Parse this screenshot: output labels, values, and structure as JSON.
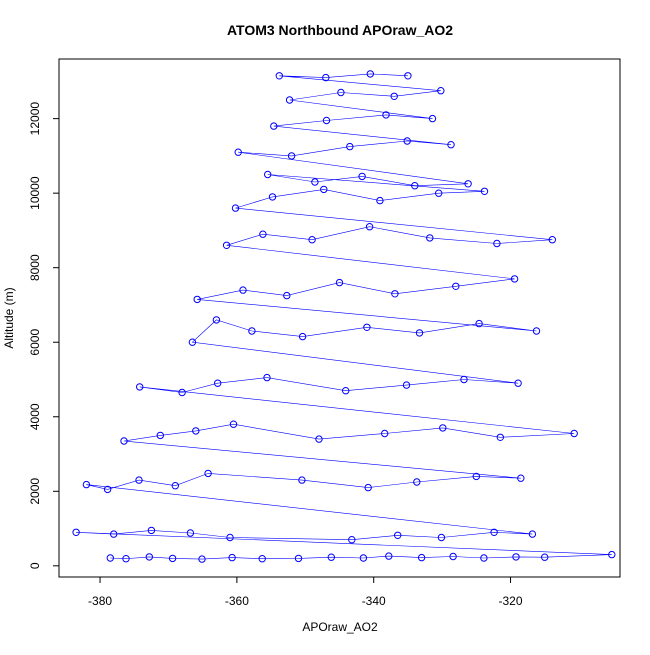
{
  "chart_data": {
    "type": "scatter",
    "title": "ATOM3 Northbound APOraw_AO2",
    "xlabel": "APOraw_AO2",
    "ylabel": "Altitude (m)",
    "xlim": [
      -386,
      -304
    ],
    "ylim": [
      -300,
      13600
    ],
    "xticks": [
      -380,
      -360,
      -340,
      -320
    ],
    "yticks": [
      0,
      2000,
      4000,
      6000,
      8000,
      10000,
      12000
    ],
    "grid": false,
    "legend": "none",
    "marker": "open-circle",
    "connect_points": true,
    "series": [
      {
        "color": "#0000ff",
        "points": [
          [
            -378.5,
            210
          ],
          [
            -376.2,
            190
          ],
          [
            -372.8,
            240
          ],
          [
            -369.4,
            200
          ],
          [
            -365.1,
            180
          ],
          [
            -360.7,
            220
          ],
          [
            -356.3,
            190
          ],
          [
            -351.0,
            200
          ],
          [
            -346.2,
            230
          ],
          [
            -341.5,
            210
          ],
          [
            -337.8,
            260
          ],
          [
            -333.0,
            220
          ],
          [
            -328.4,
            250
          ],
          [
            -323.9,
            210
          ],
          [
            -319.2,
            240
          ],
          [
            -315.0,
            230
          ],
          [
            -305.2,
            300
          ],
          [
            -383.5,
            900
          ],
          [
            -378.0,
            850
          ],
          [
            -372.5,
            950
          ],
          [
            -366.8,
            880
          ],
          [
            -361.0,
            760
          ],
          [
            -343.2,
            700
          ],
          [
            -336.5,
            820
          ],
          [
            -330.1,
            760
          ],
          [
            -322.4,
            900
          ],
          [
            -316.8,
            850
          ],
          [
            -382.0,
            2180
          ],
          [
            -378.9,
            2050
          ],
          [
            -374.3,
            2300
          ],
          [
            -369.0,
            2150
          ],
          [
            -364.2,
            2480
          ],
          [
            -350.5,
            2300
          ],
          [
            -340.8,
            2100
          ],
          [
            -333.7,
            2250
          ],
          [
            -325.0,
            2400
          ],
          [
            -318.5,
            2350
          ],
          [
            -376.5,
            3350
          ],
          [
            -371.2,
            3500
          ],
          [
            -366.0,
            3620
          ],
          [
            -360.5,
            3800
          ],
          [
            -348.0,
            3400
          ],
          [
            -338.4,
            3550
          ],
          [
            -329.9,
            3700
          ],
          [
            -321.5,
            3450
          ],
          [
            -310.7,
            3550
          ],
          [
            -374.2,
            4800
          ],
          [
            -368.0,
            4650
          ],
          [
            -362.8,
            4900
          ],
          [
            -355.6,
            5050
          ],
          [
            -344.1,
            4700
          ],
          [
            -335.2,
            4850
          ],
          [
            -326.8,
            5000
          ],
          [
            -318.9,
            4900
          ],
          [
            -366.5,
            6000
          ],
          [
            -363.0,
            6600
          ],
          [
            -357.8,
            6300
          ],
          [
            -350.4,
            6150
          ],
          [
            -341.0,
            6400
          ],
          [
            -333.3,
            6250
          ],
          [
            -324.6,
            6500
          ],
          [
            -316.2,
            6300
          ],
          [
            -365.8,
            7150
          ],
          [
            -359.1,
            7400
          ],
          [
            -352.7,
            7250
          ],
          [
            -345.0,
            7600
          ],
          [
            -336.9,
            7300
          ],
          [
            -328.0,
            7500
          ],
          [
            -319.4,
            7700
          ],
          [
            -361.5,
            8600
          ],
          [
            -356.2,
            8900
          ],
          [
            -349.0,
            8750
          ],
          [
            -340.6,
            9100
          ],
          [
            -331.8,
            8800
          ],
          [
            -322.0,
            8650
          ],
          [
            -313.9,
            8750
          ],
          [
            -360.2,
            9600
          ],
          [
            -354.8,
            9900
          ],
          [
            -347.3,
            10100
          ],
          [
            -339.1,
            9800
          ],
          [
            -330.5,
            10000
          ],
          [
            -323.8,
            10050
          ],
          [
            -355.5,
            10500
          ],
          [
            -348.6,
            10300
          ],
          [
            -341.7,
            10450
          ],
          [
            -334.0,
            10200
          ],
          [
            -326.2,
            10250
          ],
          [
            -359.8,
            11100
          ],
          [
            -352.0,
            11000
          ],
          [
            -343.5,
            11250
          ],
          [
            -335.1,
            11400
          ],
          [
            -328.7,
            11300
          ],
          [
            -354.6,
            11800
          ],
          [
            -346.9,
            11950
          ],
          [
            -338.2,
            12100
          ],
          [
            -331.4,
            12000
          ],
          [
            -352.3,
            12500
          ],
          [
            -344.8,
            12700
          ],
          [
            -337.0,
            12600
          ],
          [
            -330.2,
            12750
          ],
          [
            -353.8,
            13150
          ],
          [
            -347.0,
            13100
          ],
          [
            -340.5,
            13200
          ],
          [
            -335.0,
            13150
          ]
        ]
      }
    ]
  }
}
